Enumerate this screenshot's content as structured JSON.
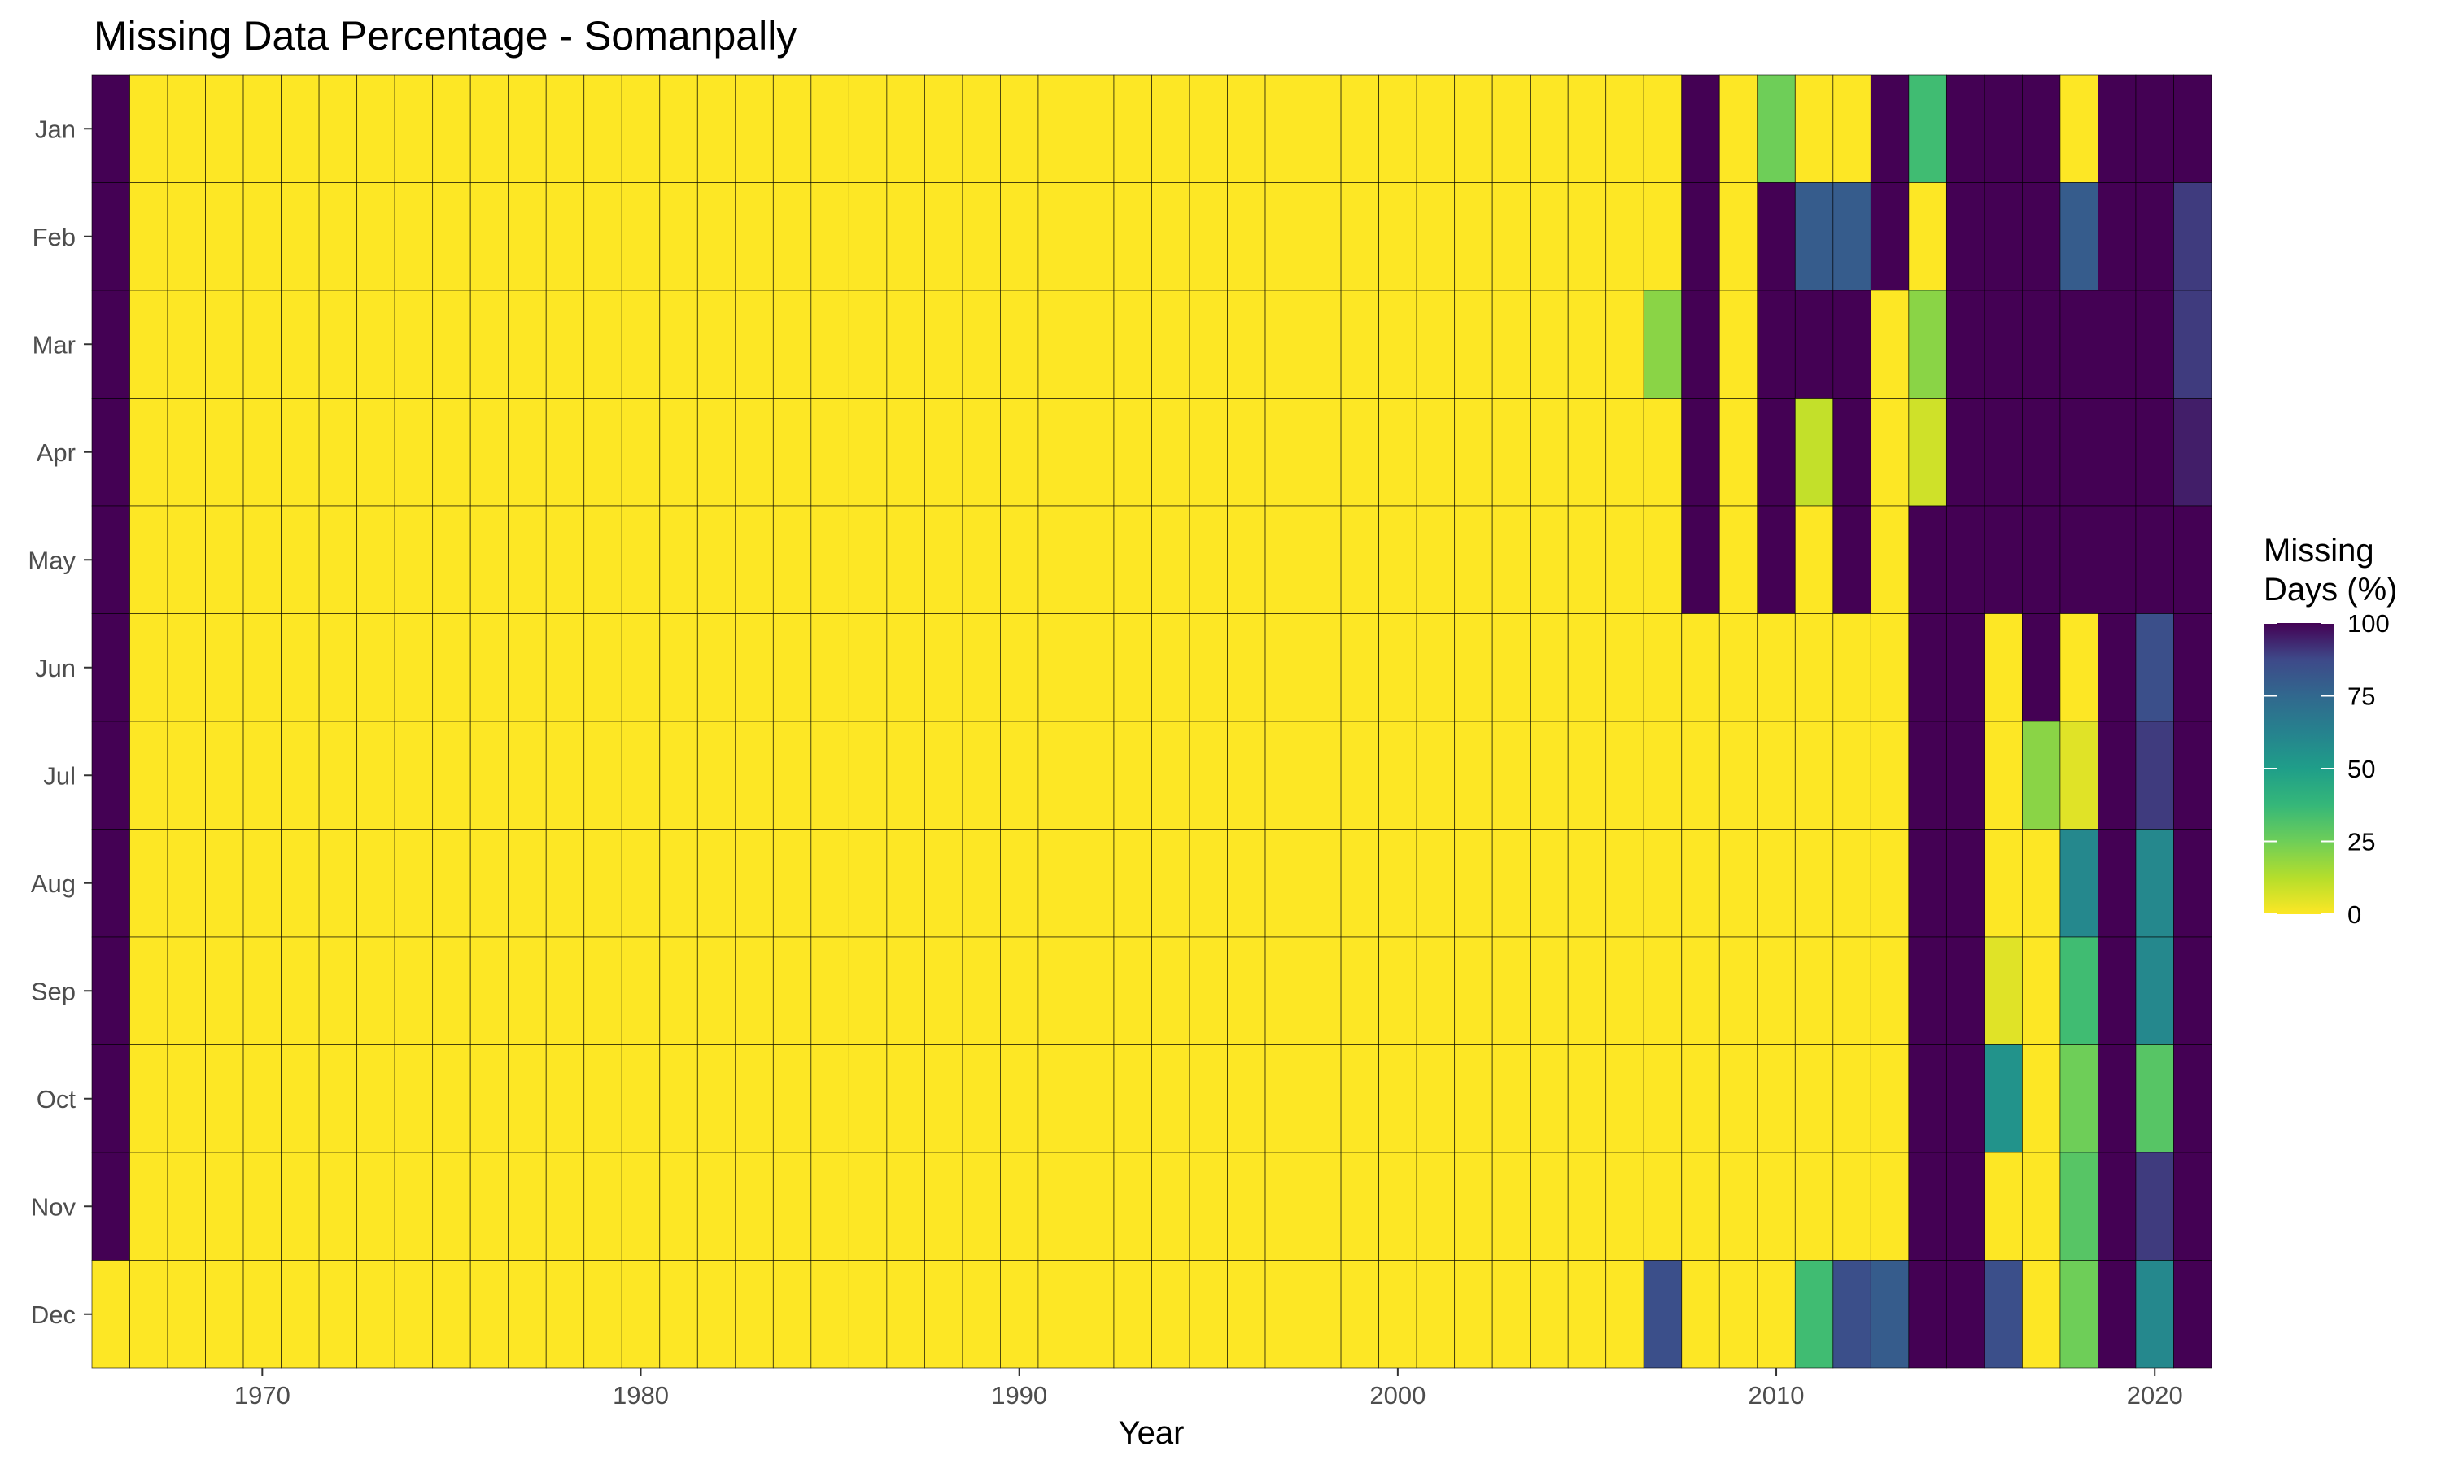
{
  "chart_data": {
    "type": "heatmap",
    "title": "Missing Data Percentage - Somanpally",
    "xlabel": "Year",
    "ylabel": "",
    "x_start": 1966,
    "x_end": 2021,
    "x_ticks": [
      1970,
      1980,
      1990,
      2000,
      2010,
      2020
    ],
    "months": [
      "Jan",
      "Feb",
      "Mar",
      "Apr",
      "May",
      "Jun",
      "Jul",
      "Aug",
      "Sep",
      "Oct",
      "Nov",
      "Dec"
    ],
    "legend": {
      "title_lines": [
        "Missing",
        "Days (%)"
      ],
      "range": [
        0,
        100
      ],
      "ticks": [
        0,
        25,
        50,
        75,
        100
      ],
      "position": "right",
      "palette": "viridis-reversed"
    },
    "grid": false,
    "default_value": 0,
    "values": {
      "1966": [
        100,
        100,
        100,
        100,
        100,
        100,
        100,
        100,
        100,
        100,
        100,
        0
      ],
      "2007": [
        0,
        0,
        20,
        0,
        0,
        0,
        0,
        0,
        0,
        0,
        0,
        85
      ],
      "2008": [
        100,
        100,
        100,
        100,
        100,
        0,
        0,
        0,
        0,
        0,
        0,
        0
      ],
      "2010": [
        25,
        100,
        100,
        100,
        100,
        0,
        0,
        0,
        0,
        0,
        0,
        0
      ],
      "2011": [
        0,
        80,
        100,
        10,
        0,
        0,
        0,
        0,
        0,
        0,
        0,
        35
      ],
      "2012": [
        0,
        80,
        100,
        100,
        100,
        0,
        0,
        0,
        0,
        0,
        0,
        85
      ],
      "2013": [
        100,
        100,
        0,
        0,
        0,
        0,
        0,
        0,
        0,
        0,
        0,
        80
      ],
      "2014": [
        35,
        0,
        20,
        8,
        100,
        100,
        100,
        100,
        100,
        100,
        100,
        100
      ],
      "2015": [
        100,
        100,
        100,
        100,
        100,
        100,
        100,
        100,
        100,
        100,
        100,
        100
      ],
      "2016": [
        100,
        100,
        100,
        100,
        100,
        0,
        0,
        0,
        5,
        55,
        0,
        85
      ],
      "2017": [
        100,
        100,
        100,
        100,
        100,
        100,
        20,
        0,
        0,
        0,
        0,
        0
      ],
      "2018": [
        0,
        80,
        100,
        100,
        100,
        0,
        5,
        60,
        35,
        25,
        30,
        25
      ],
      "2019": [
        100,
        100,
        100,
        100,
        100,
        100,
        100,
        100,
        100,
        100,
        100,
        100
      ],
      "2020": [
        100,
        100,
        100,
        100,
        100,
        85,
        90,
        60,
        60,
        30,
        90,
        60
      ],
      "2021": [
        100,
        90,
        90,
        95,
        100,
        100,
        100,
        100,
        100,
        100,
        100,
        100
      ]
    }
  }
}
